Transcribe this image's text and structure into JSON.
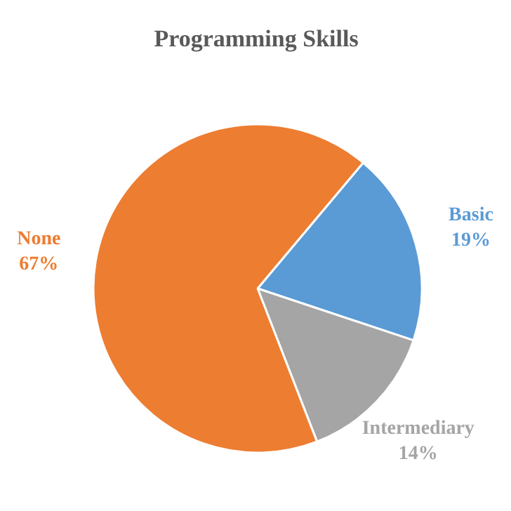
{
  "chart_data": {
    "type": "pie",
    "title": "Programming Skills",
    "categories": [
      "Basic",
      "Intermediary",
      "None"
    ],
    "values": [
      19,
      14,
      67
    ],
    "colors": [
      "#5b9bd5",
      "#a5a5a5",
      "#ed7d31"
    ],
    "value_labels": [
      "19%",
      "14%",
      "67%"
    ]
  }
}
